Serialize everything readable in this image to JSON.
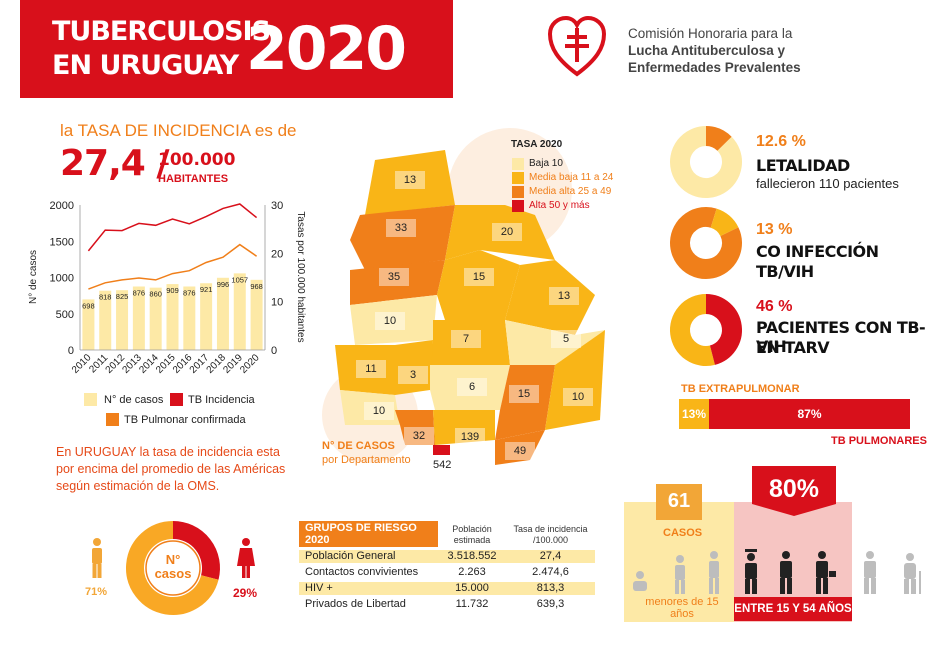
{
  "header": {
    "title_line1": "TUBERCULOSIS",
    "title_line2": "EN URUGUAY",
    "year": "2020",
    "org_line1": "Comisión Honoraria para la",
    "org_line2": "Lucha Antituberculosa y",
    "org_line3": "Enfermedades Prevalentes"
  },
  "incidence": {
    "title": "la TASA DE INCIDENCIA es de",
    "value": "27,4 /",
    "per": "100.000",
    "per_sub": "HABITANTES"
  },
  "colors": {
    "red": "#d8101b",
    "orange": "#f07f1a",
    "amber": "#f9b517",
    "pale": "#fde9a6"
  },
  "chart_data": {
    "type": "bar",
    "categories": [
      "2010",
      "2011",
      "2012",
      "2013",
      "2014",
      "2015",
      "2016",
      "2017",
      "2018",
      "2019",
      "2020"
    ],
    "series": [
      {
        "name": "N° de casos",
        "type": "bar",
        "axis": "left",
        "values": [
          698,
          818,
          825,
          876,
          860,
          909,
          876,
          921,
          996,
          1057,
          968
        ],
        "labels": [
          "698",
          "818",
          "825",
          "876",
          "860",
          "909",
          "876",
          "921",
          "996",
          "1057",
          "968"
        ]
      },
      {
        "name": "TB Incidencia",
        "type": "line",
        "axis": "right",
        "values": [
          20.5,
          24.8,
          24.7,
          26.2,
          25.8,
          27.1,
          26.1,
          27.6,
          29.3,
          30.2,
          27.4
        ]
      },
      {
        "name": "TB Pulmonar confirmada",
        "type": "line",
        "axis": "right",
        "values": [
          12.6,
          13.9,
          14.5,
          14.9,
          14.5,
          15.8,
          16.4,
          18.1,
          19.2,
          21.8,
          19.4
        ]
      }
    ],
    "ylabel": "N° de casos",
    "ylabel_right": "Tasas por 100.000 habitantes",
    "ylim": [
      0,
      2000
    ],
    "ylim_right": [
      0,
      30
    ],
    "yticks": [
      "0",
      "500",
      "1000",
      "1500",
      "2000"
    ],
    "yticks_right": [
      "0",
      "10",
      "20",
      "30"
    ],
    "grid": false,
    "legend": "bottom"
  },
  "americas_note": "En URUGUAY la tasa de incidencia esta por encima del promedio de las Américas según estimación de la OMS.",
  "sex_split": {
    "center_label": "N° casos",
    "male_pct": "71%",
    "female_pct": "29%",
    "male_fraction": 0.71
  },
  "map": {
    "legend_title": "TASA 2020",
    "legend": [
      {
        "label": "Baja",
        "range": "10"
      },
      {
        "label": "Media baja",
        "range": "11 a 24"
      },
      {
        "label": "Media alta",
        "range": "25 a 49"
      },
      {
        "label": "Alta",
        "range": "50 y más"
      }
    ],
    "dept_label_title": "N° DE CASOS",
    "dept_label_sub": "por Departamento",
    "departments": [
      "13",
      "33",
      "20",
      "35",
      "15",
      "13",
      "10",
      "7",
      "5",
      "11",
      "3",
      "6",
      "15",
      "10",
      "10",
      "32",
      "139",
      "49",
      "542"
    ]
  },
  "stats": {
    "letalidad_pct": "12.6 %",
    "letalidad_fraction": 0.126,
    "letalidad_title": "LETALIDAD",
    "letalidad_sub": "fallecieron 110 pacientes",
    "coinf_pct": "13 %",
    "coinf_fraction": 0.13,
    "coinf_title1": "CO INFECCIÓN",
    "coinf_title2": "TB/VIH",
    "tarv_pct": "46 %",
    "tarv_fraction": 0.46,
    "tarv_title1": "PACIENTES CON TB-VIH",
    "tarv_title2": "EN TARV"
  },
  "extrapulmonar": {
    "label_top": "TB EXTRAPULMONAR",
    "extra_pct": "13%",
    "pulm_pct": "87%",
    "extra_fraction": 0.13,
    "label_bottom": "TB PULMONARES"
  },
  "risk_table": {
    "title": "GRUPOS DE RIESGO 2020",
    "col2": "Población estimada",
    "col3": "Tasa de incidencia /100.000",
    "rows": [
      {
        "group": "Población General",
        "pop": "3.518.552",
        "rate": "27,4"
      },
      {
        "group": "Contactos convivientes",
        "pop": "2.263",
        "rate": "2.474,6"
      },
      {
        "group": "HIV +",
        "pop": "15.000",
        "rate": "813,3"
      },
      {
        "group": "Privados de Libertad",
        "pop": "11.732",
        "rate": "639,3"
      }
    ]
  },
  "ages": {
    "casos_number": "61",
    "casos_label": "CASOS",
    "menores_label": "menores de 15 años",
    "adult_pct": "80%",
    "adult_label": "ENTRE 15 Y 54 AÑOS"
  }
}
